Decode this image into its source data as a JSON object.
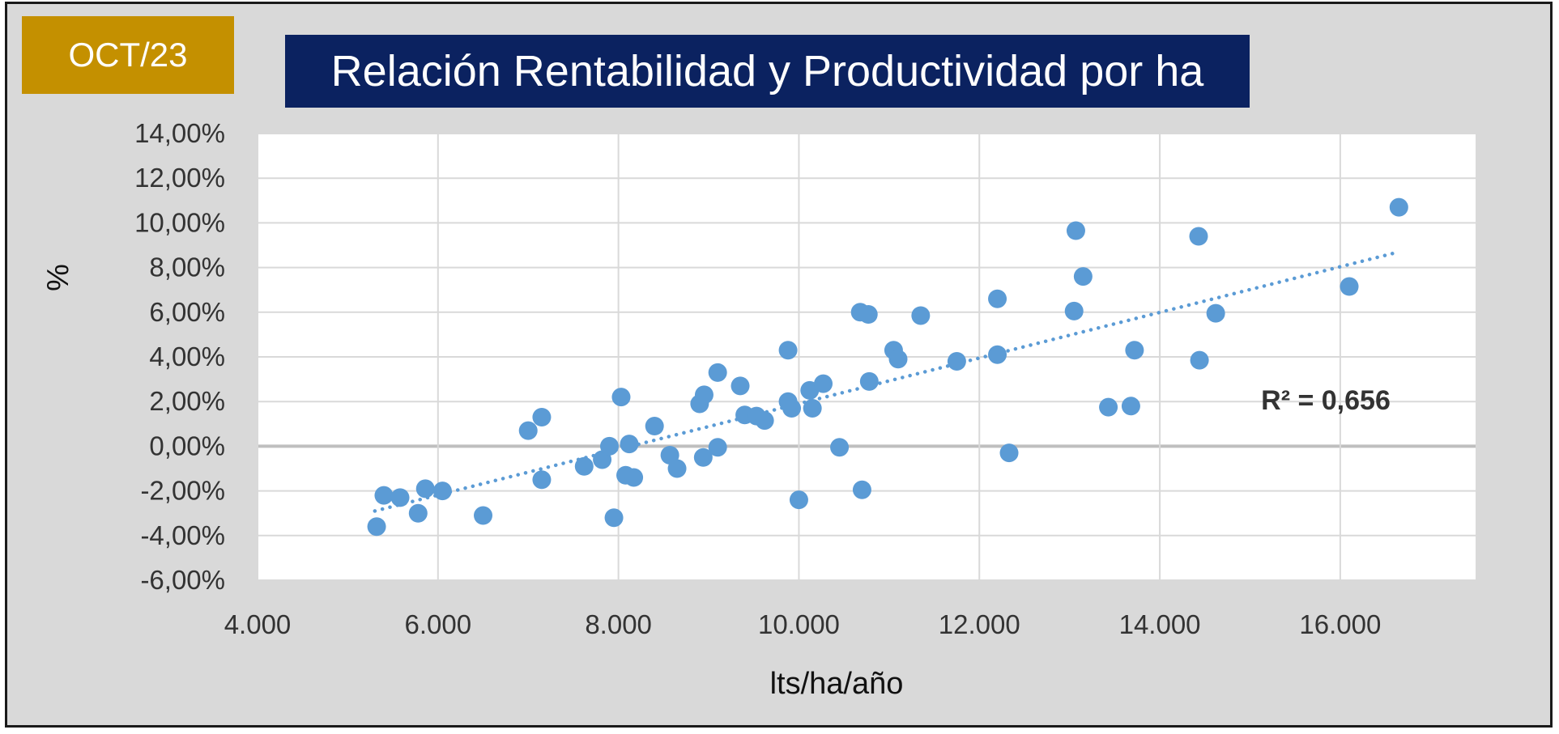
{
  "badge": {
    "label": "OCT/23",
    "color": "#c49000"
  },
  "header": {
    "title": "Relación Rentabilidad y Productividad por ha",
    "color": "#0b2260"
  },
  "chart_data": {
    "type": "scatter",
    "xlabel": "lts/ha/año",
    "ylabel": "%",
    "xlim": [
      4000,
      17500
    ],
    "ylim": [
      -6,
      14
    ],
    "x_ticks": [
      4000,
      6000,
      8000,
      10000,
      12000,
      14000,
      16000
    ],
    "x_tick_labels": [
      "4.000",
      "6.000",
      "8.000",
      "10.000",
      "12.000",
      "14.000",
      "16.000"
    ],
    "y_ticks": [
      -6,
      -4,
      -2,
      0,
      2,
      4,
      6,
      8,
      10,
      12,
      14
    ],
    "y_tick_labels": [
      "-6,00%",
      "-4,00%",
      "-2,00%",
      "0,00%",
      "2,00%",
      "4,00%",
      "6,00%",
      "8,00%",
      "10,00%",
      "12,00%",
      "14,00%"
    ],
    "grid": true,
    "point_color": "#5b9bd5",
    "trendline": {
      "type": "linear",
      "style": "dotted",
      "x": [
        5300,
        16650
      ],
      "y": [
        -2.9,
        8.7
      ],
      "color": "#5b9bd5"
    },
    "annotation": "R² = 0,656",
    "points": [
      {
        "x": 5320,
        "y": -3.6
      },
      {
        "x": 5400,
        "y": -2.2
      },
      {
        "x": 5580,
        "y": -2.3
      },
      {
        "x": 5780,
        "y": -3.0
      },
      {
        "x": 5860,
        "y": -1.9
      },
      {
        "x": 6050,
        "y": -2.0
      },
      {
        "x": 6500,
        "y": -3.1
      },
      {
        "x": 7000,
        "y": 0.7
      },
      {
        "x": 7150,
        "y": 1.3
      },
      {
        "x": 7150,
        "y": -1.5
      },
      {
        "x": 7620,
        "y": -0.9
      },
      {
        "x": 7820,
        "y": -0.6
      },
      {
        "x": 7900,
        "y": 0.0
      },
      {
        "x": 7950,
        "y": -3.2
      },
      {
        "x": 8030,
        "y": 2.2
      },
      {
        "x": 8080,
        "y": -1.3
      },
      {
        "x": 8120,
        "y": 0.1
      },
      {
        "x": 8170,
        "y": -1.4
      },
      {
        "x": 8400,
        "y": 0.9
      },
      {
        "x": 8570,
        "y": -0.4
      },
      {
        "x": 8650,
        "y": -1.0
      },
      {
        "x": 8900,
        "y": 1.9
      },
      {
        "x": 8950,
        "y": 2.3
      },
      {
        "x": 8940,
        "y": -0.5
      },
      {
        "x": 9100,
        "y": 3.3
      },
      {
        "x": 9100,
        "y": -0.05
      },
      {
        "x": 9350,
        "y": 2.7
      },
      {
        "x": 9400,
        "y": 1.4
      },
      {
        "x": 9530,
        "y": 1.35
      },
      {
        "x": 9620,
        "y": 1.15
      },
      {
        "x": 9880,
        "y": 4.3
      },
      {
        "x": 9880,
        "y": 2.0
      },
      {
        "x": 9920,
        "y": 1.7
      },
      {
        "x": 10000,
        "y": -2.4
      },
      {
        "x": 10120,
        "y": 2.5
      },
      {
        "x": 10150,
        "y": 1.7
      },
      {
        "x": 10270,
        "y": 2.8
      },
      {
        "x": 10450,
        "y": -0.05
      },
      {
        "x": 10680,
        "y": 6.0
      },
      {
        "x": 10700,
        "y": -1.95
      },
      {
        "x": 10770,
        "y": 5.9
      },
      {
        "x": 10780,
        "y": 2.9
      },
      {
        "x": 11050,
        "y": 4.3
      },
      {
        "x": 11100,
        "y": 3.9
      },
      {
        "x": 11350,
        "y": 5.85
      },
      {
        "x": 11750,
        "y": 3.8
      },
      {
        "x": 12200,
        "y": 6.6
      },
      {
        "x": 12200,
        "y": 4.1
      },
      {
        "x": 12330,
        "y": -0.3
      },
      {
        "x": 13050,
        "y": 6.05
      },
      {
        "x": 13070,
        "y": 9.65
      },
      {
        "x": 13150,
        "y": 7.6
      },
      {
        "x": 13430,
        "y": 1.75
      },
      {
        "x": 13680,
        "y": 1.8
      },
      {
        "x": 13720,
        "y": 4.3
      },
      {
        "x": 14430,
        "y": 9.4
      },
      {
        "x": 14440,
        "y": 3.85
      },
      {
        "x": 14620,
        "y": 5.95
      },
      {
        "x": 16100,
        "y": 7.15
      },
      {
        "x": 16650,
        "y": 10.7
      }
    ]
  }
}
